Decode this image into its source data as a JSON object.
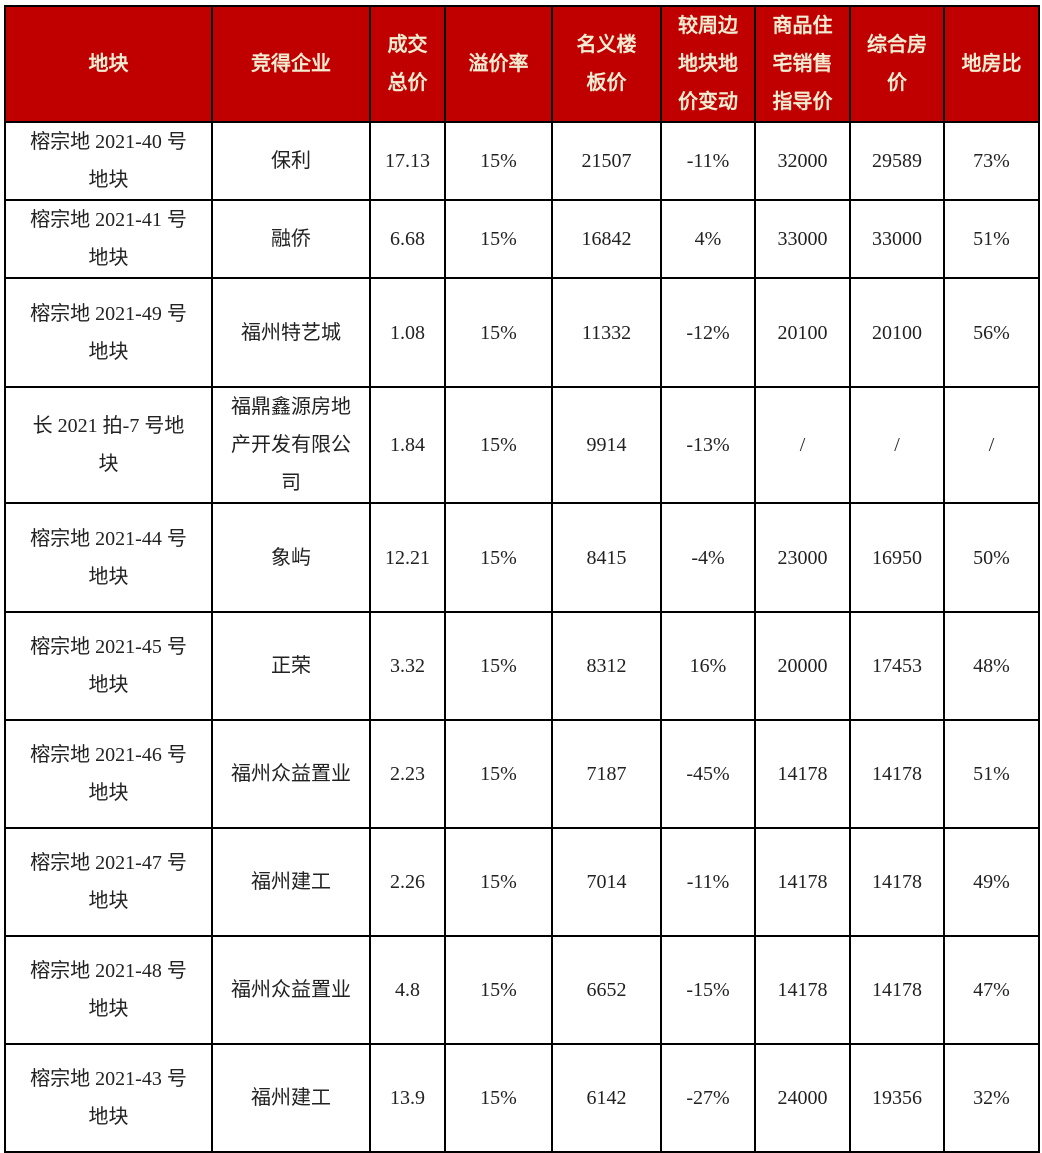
{
  "colors": {
    "header_bg": "#c00000",
    "header_text": "#f2ecd2",
    "border": "#000000"
  },
  "headers": [
    "地块",
    "竞得企业",
    "成交\n总价",
    "溢价率",
    "名义楼\n板价",
    "较周边\n地块地\n价变动",
    "商品住\n宅销售\n指导价",
    "综合房\n价",
    "地房比"
  ],
  "rows": [
    [
      "榕宗地 2021-40 号\n地块",
      "保利",
      "17.13",
      "15%",
      "21507",
      "-11%",
      "32000",
      "29589",
      "73%"
    ],
    [
      "榕宗地 2021-41 号\n地块",
      "融侨",
      "6.68",
      "15%",
      "16842",
      "4%",
      "33000",
      "33000",
      "51%"
    ],
    [
      "榕宗地 2021-49 号\n地块",
      "福州特艺城",
      "1.08",
      "15%",
      "11332",
      "-12%",
      "20100",
      "20100",
      "56%"
    ],
    [
      "长 2021 拍-7 号地\n块",
      "福鼎鑫源房地\n产开发有限公\n司",
      "1.84",
      "15%",
      "9914",
      "-13%",
      "/",
      "/",
      "/"
    ],
    [
      "榕宗地 2021-44 号\n地块",
      "象屿",
      "12.21",
      "15%",
      "8415",
      "-4%",
      "23000",
      "16950",
      "50%"
    ],
    [
      "榕宗地 2021-45 号\n地块",
      "正荣",
      "3.32",
      "15%",
      "8312",
      "16%",
      "20000",
      "17453",
      "48%"
    ],
    [
      "榕宗地 2021-46 号\n地块",
      "福州众益置业",
      "2.23",
      "15%",
      "7187",
      "-45%",
      "14178",
      "14178",
      "51%"
    ],
    [
      "榕宗地 2021-47 号\n地块",
      "福州建工",
      "2.26",
      "15%",
      "7014",
      "-11%",
      "14178",
      "14178",
      "49%"
    ],
    [
      "榕宗地 2021-48 号\n地块",
      "福州众益置业",
      "4.8",
      "15%",
      "6652",
      "-15%",
      "14178",
      "14178",
      "47%"
    ],
    [
      "榕宗地 2021-43 号\n地块",
      "福州建工",
      "13.9",
      "15%",
      "6142",
      "-27%",
      "24000",
      "19356",
      "32%"
    ]
  ]
}
